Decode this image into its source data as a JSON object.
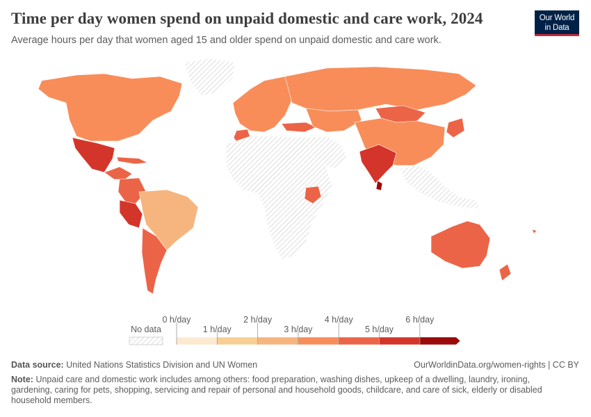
{
  "header": {
    "title": "Time per day women spend on unpaid domestic and care work, 2024",
    "subtitle": "Average hours per day that women aged 15 and older spend on unpaid domestic and care work.",
    "logo_line1": "Our World",
    "logo_line2": "in Data"
  },
  "colors": {
    "no_data_hatch": "#d9d9d9",
    "bin_0_1": "#fde9d0",
    "bin_1_2": "#f8cf92",
    "bin_2_3": "#f6b57e",
    "bin_3_4": "#f88d5a",
    "bin_4_5": "#ec6447",
    "bin_5_6": "#d4352a",
    "bin_6_plus": "#9b0a0a",
    "logo_bg": "#002147",
    "logo_accent": "#c5283d"
  },
  "legend": {
    "no_data_label": "No data",
    "tick_labels": [
      "0 h/day",
      "1 h/day",
      "2 h/day",
      "3 h/day",
      "4 h/day",
      "5 h/day",
      "6 h/day"
    ],
    "bins": [
      {
        "min": 0,
        "max": 1,
        "color": "#fde9d0"
      },
      {
        "min": 1,
        "max": 2,
        "color": "#f8cf92"
      },
      {
        "min": 2,
        "max": 3,
        "color": "#f6b57e"
      },
      {
        "min": 3,
        "max": 4,
        "color": "#f88d5a"
      },
      {
        "min": 4,
        "max": 5,
        "color": "#ec6447"
      },
      {
        "min": 5,
        "max": 6,
        "color": "#d4352a"
      },
      {
        "min": 6,
        "max": null,
        "color": "#9b0a0a"
      }
    ]
  },
  "map_data": {
    "regions": [
      {
        "name": "north-america",
        "bin": 3
      },
      {
        "name": "greenland",
        "bin": null
      },
      {
        "name": "mexico",
        "bin": 5
      },
      {
        "name": "central-america",
        "bin": 4
      },
      {
        "name": "colombia-ecuador",
        "bin": 4
      },
      {
        "name": "peru",
        "bin": 5
      },
      {
        "name": "brazil",
        "bin": 2
      },
      {
        "name": "argentina-chile",
        "bin": 4
      },
      {
        "name": "europe",
        "bin": 3
      },
      {
        "name": "russia",
        "bin": 3
      },
      {
        "name": "turkey",
        "bin": 4
      },
      {
        "name": "kazakhstan",
        "bin": 3
      },
      {
        "name": "mongolia",
        "bin": 4
      },
      {
        "name": "china",
        "bin": 3
      },
      {
        "name": "japan",
        "bin": 4
      },
      {
        "name": "india",
        "bin": 5
      },
      {
        "name": "sri-lanka",
        "bin": 6
      },
      {
        "name": "morocco",
        "bin": 4
      },
      {
        "name": "africa",
        "bin": null
      },
      {
        "name": "kenya",
        "bin": 4
      },
      {
        "name": "middle-east",
        "bin": null
      },
      {
        "name": "southeast-asia",
        "bin": null
      },
      {
        "name": "australia",
        "bin": 4
      },
      {
        "name": "new-zealand",
        "bin": 4
      }
    ]
  },
  "footer": {
    "source_label": "Data source:",
    "source_text": "United Nations Statistics Division and UN Women",
    "url_text": "OurWorldinData.org/women-rights | CC BY",
    "note_label": "Note:",
    "note_text": "Unpaid care and domestic work includes among others: food preparation, washing dishes, upkeep of a dwelling, laundry, ironing, gardening, caring for pets, shopping, servicing and repair of personal and household goods, childcare, and care of sick, elderly or disabled household members."
  }
}
